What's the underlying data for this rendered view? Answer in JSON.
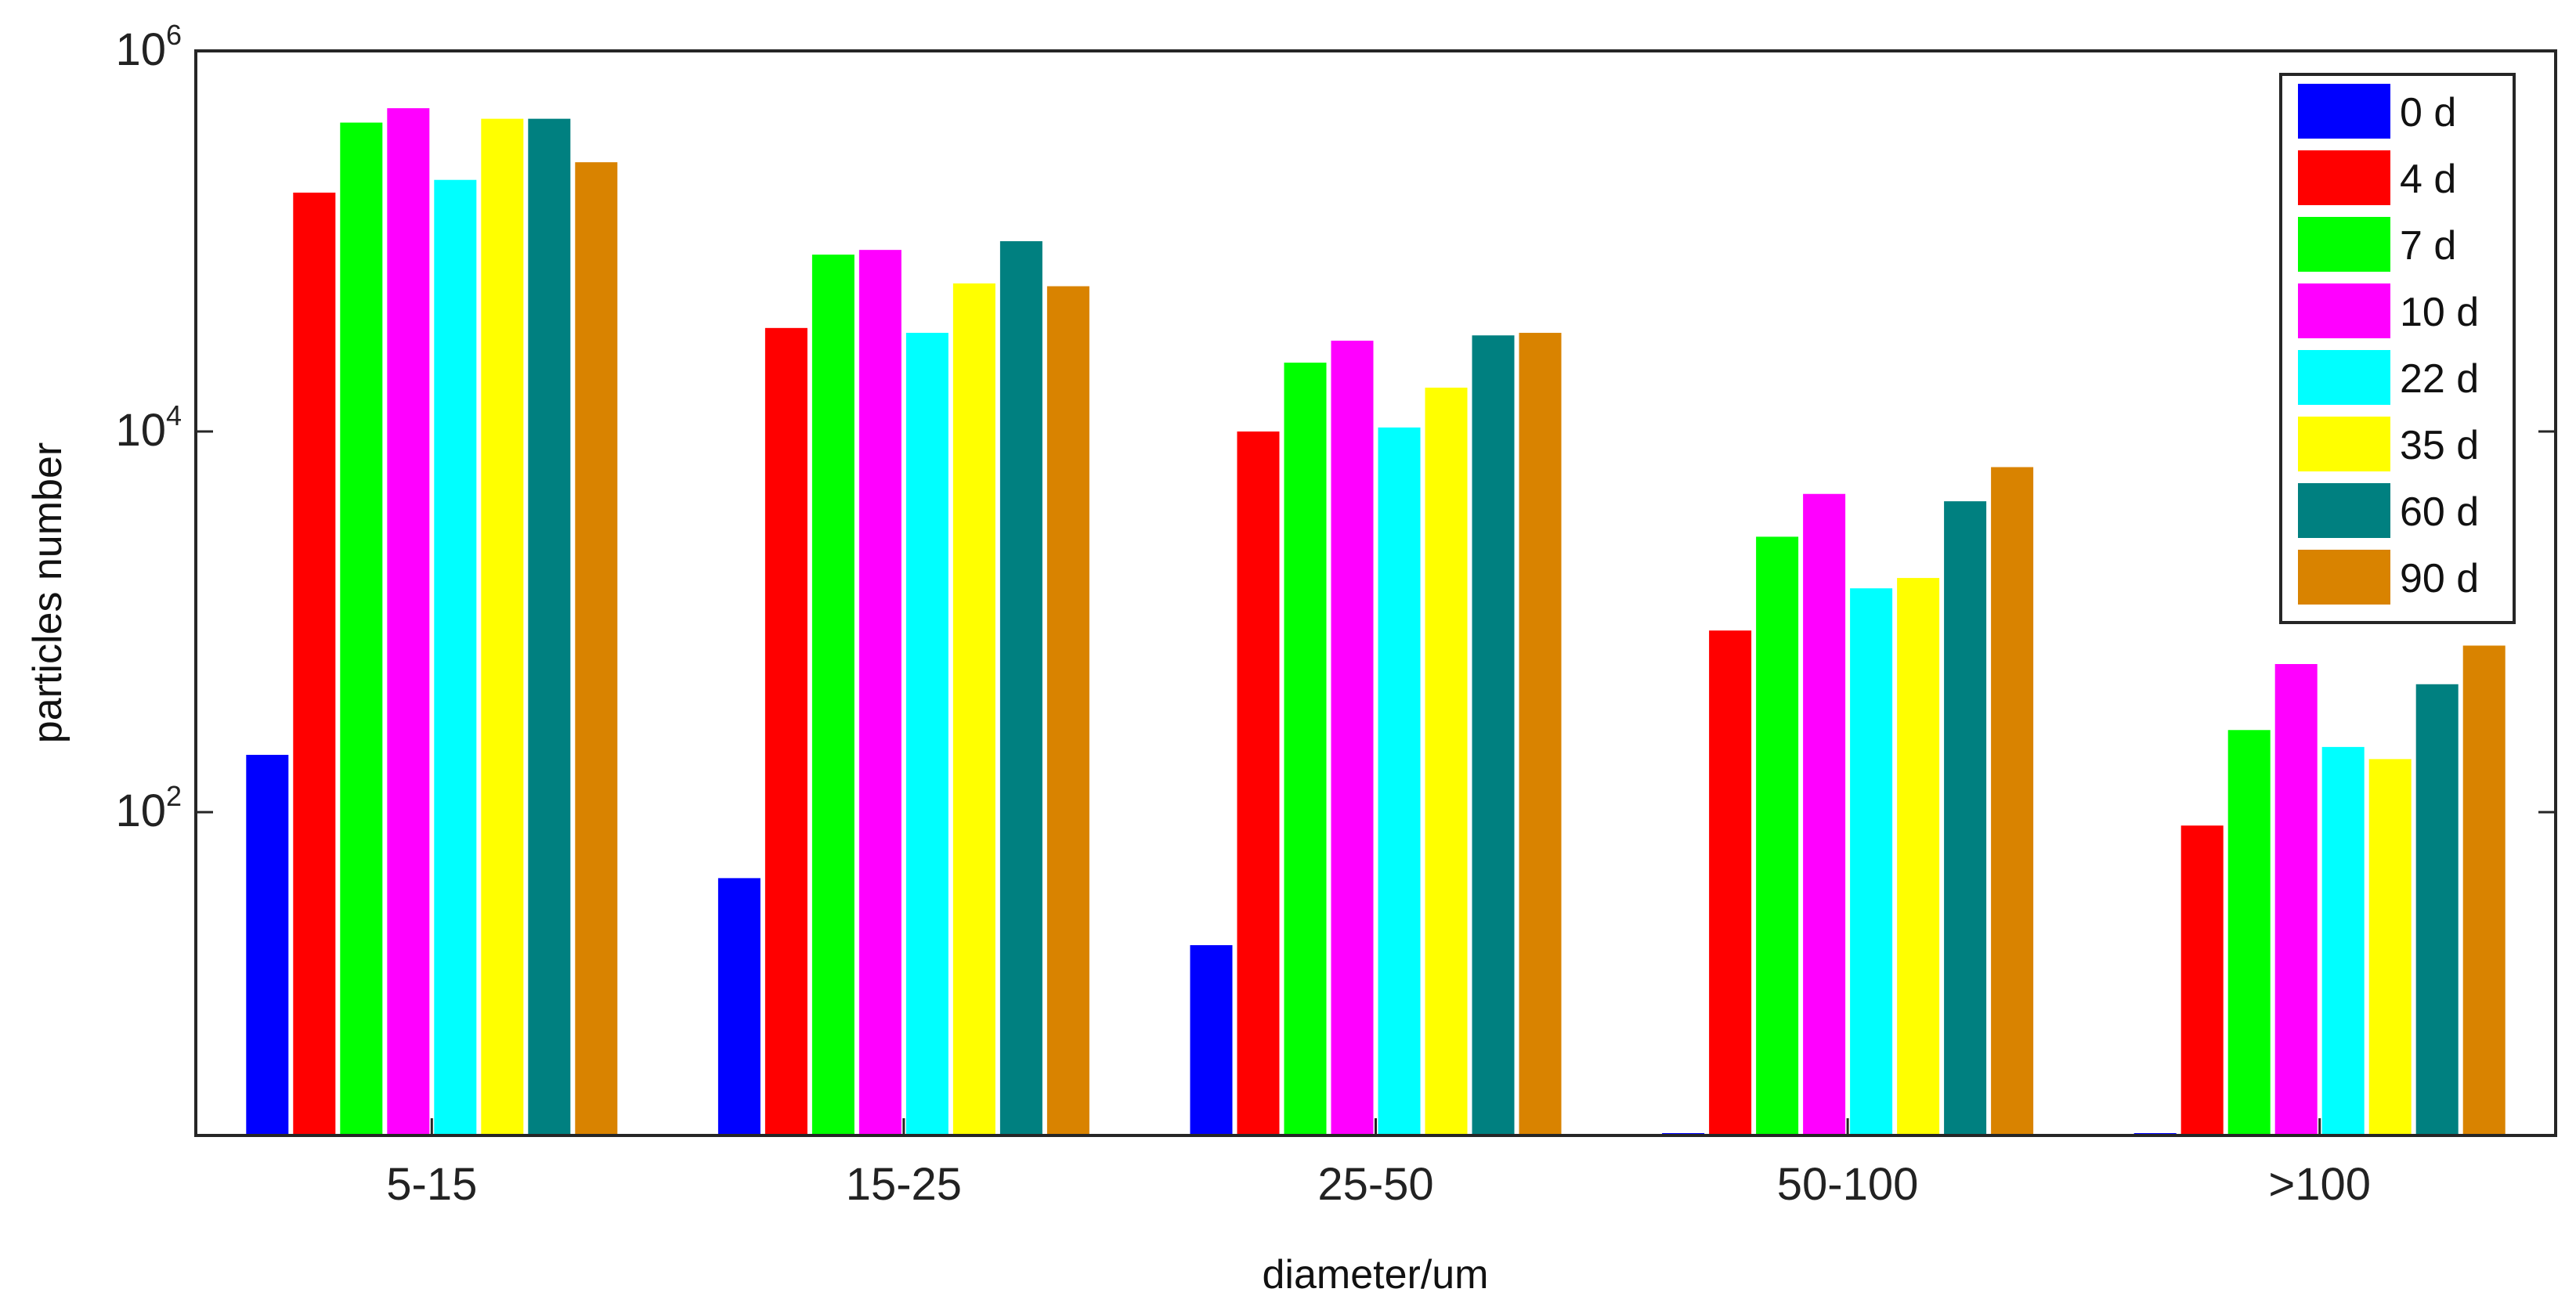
{
  "chart_data": {
    "type": "bar",
    "title": "",
    "xlabel": "diameter/um",
    "ylabel": "particles number",
    "yscale": "log",
    "ylim": [
      2,
      1000000
    ],
    "y_ticks": [
      {
        "value": 100,
        "base": "10",
        "exp": "2"
      },
      {
        "value": 10000,
        "base": "10",
        "exp": "4"
      },
      {
        "value": 1000000,
        "base": "10",
        "exp": "6"
      }
    ],
    "categories": [
      "5-15",
      "15-25",
      "25-50",
      "50-100",
      ">100"
    ],
    "legend_position": "top-right",
    "series": [
      {
        "name": "0 d",
        "color": "#0000ff",
        "values": [
          200,
          45,
          20,
          2,
          2
        ]
      },
      {
        "name": "4 d",
        "color": "#ff0000",
        "values": [
          180000,
          35000,
          10000,
          900,
          85
        ]
      },
      {
        "name": "7 d",
        "color": "#00ff00",
        "values": [
          420000,
          85000,
          23000,
          2800,
          270
        ]
      },
      {
        "name": "10 d",
        "color": "#ff00ff",
        "values": [
          500000,
          90000,
          30000,
          4700,
          600
        ]
      },
      {
        "name": "22 d",
        "color": "#00ffff",
        "values": [
          210000,
          33000,
          10500,
          1500,
          220
        ]
      },
      {
        "name": "35 d",
        "color": "#ffff00",
        "values": [
          440000,
          60000,
          17000,
          1700,
          190
        ]
      },
      {
        "name": "60 d",
        "color": "#008080",
        "values": [
          440000,
          100000,
          32000,
          4300,
          470
        ]
      },
      {
        "name": "90 d",
        "color": "#d98300",
        "values": [
          260000,
          58000,
          33000,
          6500,
          750
        ]
      }
    ]
  }
}
